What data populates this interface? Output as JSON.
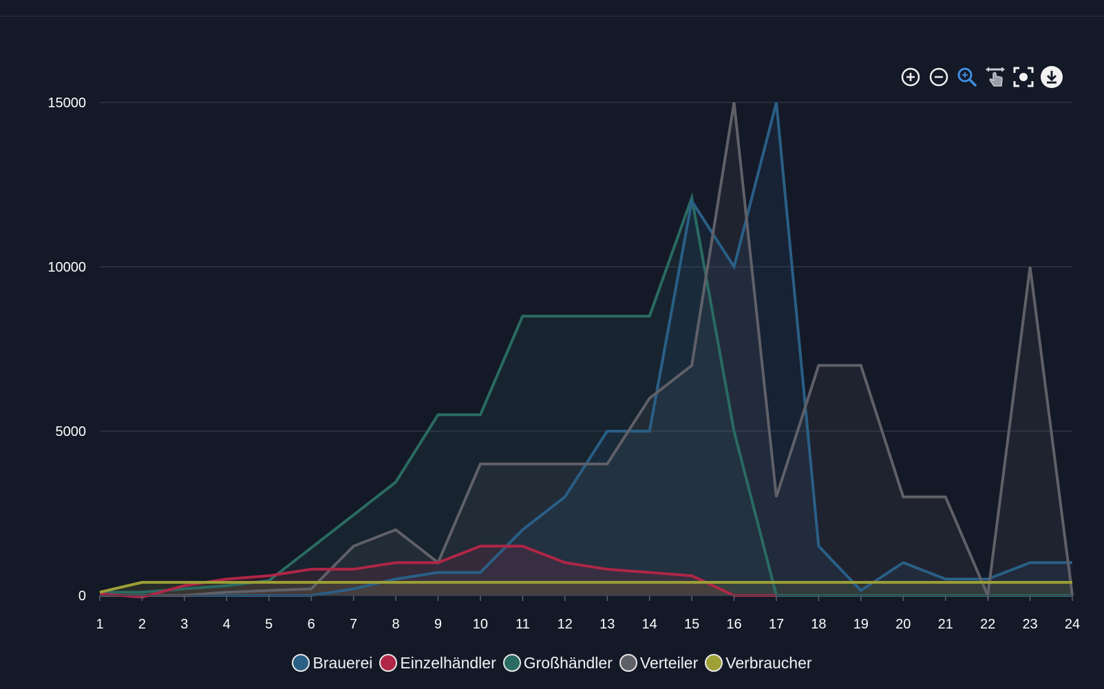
{
  "chart_data": {
    "type": "area",
    "title": "",
    "xlabel": "",
    "ylabel": "",
    "categories": [
      "1",
      "2",
      "3",
      "4",
      "5",
      "6",
      "7",
      "8",
      "9",
      "10",
      "11",
      "12",
      "13",
      "14",
      "15",
      "16",
      "17",
      "18",
      "19",
      "20",
      "21",
      "22",
      "23",
      "24"
    ],
    "ylim": [
      0,
      15000
    ],
    "yticks": [
      "0",
      "5000",
      "10000",
      "15000"
    ],
    "grid": true,
    "legend_position": "bottom-center",
    "series": [
      {
        "name": "Großhändler",
        "color": "#2a6b63",
        "values": [
          100,
          100,
          200,
          300,
          450,
          1450,
          2450,
          3450,
          5500,
          5500,
          8500,
          8500,
          8500,
          8500,
          12100,
          5000,
          0,
          0,
          0,
          0,
          0,
          0,
          0,
          0
        ]
      },
      {
        "name": "Brauerei",
        "color": "#2a5f86",
        "values": [
          0,
          0,
          0,
          0,
          0,
          0,
          200,
          500,
          700,
          700,
          2000,
          3000,
          5000,
          5000,
          12000,
          10000,
          15000,
          1500,
          150,
          1000,
          500,
          500,
          1000,
          1000
        ]
      },
      {
        "name": "Verteiler",
        "color": "#606068",
        "values": [
          0,
          0,
          0,
          100,
          150,
          200,
          1500,
          2000,
          1000,
          4000,
          4000,
          4000,
          4000,
          6000,
          7000,
          15000,
          3000,
          7000,
          7000,
          3000,
          3000,
          0,
          10000,
          0
        ]
      },
      {
        "name": "Einzelhändler",
        "color": "#b02646",
        "values": [
          50,
          -50,
          300,
          500,
          600,
          800,
          800,
          1000,
          1000,
          1500,
          1500,
          1000,
          800,
          700,
          600,
          0,
          0,
          null,
          null,
          null,
          null,
          null,
          null,
          null
        ]
      },
      {
        "name": "Verbraucher",
        "color": "#9ea136",
        "values": [
          100,
          400,
          400,
          400,
          400,
          400,
          400,
          400,
          400,
          400,
          400,
          400,
          400,
          400,
          400,
          400,
          400,
          400,
          400,
          400,
          400,
          400,
          400,
          400
        ]
      }
    ],
    "legend": [
      {
        "name": "Brauerei",
        "color": "#2a5f86"
      },
      {
        "name": "Einzelhändler",
        "color": "#b02646"
      },
      {
        "name": "Großhändler",
        "color": "#2a6b63"
      },
      {
        "name": "Verteiler",
        "color": "#606068"
      },
      {
        "name": "Verbraucher",
        "color": "#9ea136"
      }
    ]
  },
  "toolbar": {
    "zoom_in": "zoom-in-icon",
    "zoom_out": "zoom-out-icon",
    "selection_zoom": "selection-zoom-icon",
    "pan": "pan-hand-icon",
    "reset": "reset-zoom-icon",
    "download": "download-icon",
    "active_color": "#3f8de0"
  }
}
